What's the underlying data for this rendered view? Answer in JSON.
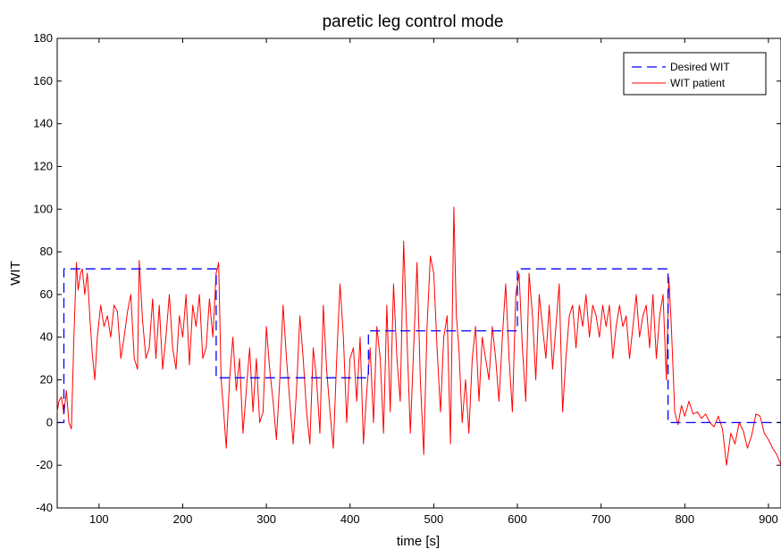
{
  "chart_data": {
    "type": "line",
    "title": "paretic leg control mode",
    "xlabel": "time [s]",
    "ylabel": "WIT",
    "xlim": [
      50,
      915
    ],
    "ylim": [
      -40,
      180
    ],
    "xticks": [
      100,
      200,
      300,
      400,
      500,
      600,
      700,
      800,
      900
    ],
    "yticks": [
      -40,
      -20,
      0,
      20,
      40,
      60,
      80,
      100,
      120,
      140,
      160,
      180
    ],
    "grid": false,
    "legend_position": "top-right",
    "series": [
      {
        "name": "Desired WIT",
        "color": "#0000ff",
        "style": "dashed",
        "x": [
          50,
          58,
          58,
          240,
          240,
          422,
          422,
          600,
          600,
          780,
          780,
          915
        ],
        "y": [
          0,
          0,
          72,
          72,
          21,
          21,
          43,
          43,
          72,
          72,
          0,
          0
        ]
      },
      {
        "name": "WIT patient",
        "color": "#ff0000",
        "style": "solid",
        "x": [
          50,
          52,
          55,
          58,
          61,
          64,
          67,
          70,
          73,
          75,
          78,
          80,
          83,
          86,
          89,
          92,
          95,
          98,
          102,
          106,
          110,
          114,
          118,
          122,
          126,
          130,
          134,
          138,
          142,
          146,
          148,
          152,
          156,
          160,
          164,
          168,
          172,
          176,
          180,
          184,
          188,
          192,
          196,
          200,
          204,
          208,
          212,
          216,
          220,
          224,
          228,
          232,
          236,
          240,
          243,
          246,
          249,
          252,
          256,
          260,
          264,
          268,
          272,
          276,
          280,
          284,
          288,
          292,
          296,
          300,
          304,
          308,
          312,
          316,
          320,
          324,
          328,
          332,
          336,
          340,
          344,
          348,
          352,
          356,
          360,
          364,
          368,
          372,
          376,
          380,
          384,
          388,
          392,
          396,
          400,
          404,
          408,
          412,
          416,
          420,
          424,
          428,
          432,
          436,
          440,
          444,
          448,
          452,
          456,
          460,
          464,
          468,
          472,
          476,
          480,
          484,
          488,
          492,
          496,
          500,
          504,
          508,
          512,
          516,
          520,
          524,
          527,
          530,
          534,
          538,
          542,
          546,
          550,
          554,
          558,
          562,
          566,
          570,
          574,
          578,
          582,
          586,
          590,
          594,
          598,
          602,
          606,
          610,
          614,
          618,
          622,
          626,
          630,
          634,
          638,
          642,
          646,
          650,
          654,
          658,
          662,
          666,
          670,
          674,
          678,
          682,
          686,
          690,
          694,
          698,
          702,
          706,
          710,
          714,
          718,
          722,
          726,
          730,
          734,
          738,
          742,
          746,
          750,
          754,
          758,
          762,
          766,
          770,
          774,
          778,
          781,
          784,
          788,
          792,
          796,
          800,
          805,
          810,
          815,
          820,
          825,
          830,
          835,
          840,
          845,
          850,
          855,
          860,
          865,
          870,
          875,
          880,
          885,
          890,
          895,
          900,
          905,
          910,
          915
        ],
        "y": [
          5,
          10,
          12,
          4,
          15,
          0,
          -3,
          40,
          75,
          62,
          70,
          72,
          60,
          70,
          50,
          32,
          20,
          40,
          55,
          45,
          50,
          40,
          55,
          52,
          30,
          40,
          52,
          60,
          30,
          25,
          76,
          48,
          30,
          35,
          58,
          30,
          55,
          25,
          40,
          60,
          35,
          25,
          50,
          40,
          60,
          27,
          55,
          45,
          60,
          30,
          35,
          58,
          40,
          70,
          75,
          20,
          5,
          -12,
          20,
          40,
          15,
          30,
          -5,
          15,
          35,
          5,
          30,
          0,
          5,
          45,
          25,
          10,
          -8,
          20,
          55,
          30,
          10,
          -10,
          15,
          50,
          30,
          5,
          -10,
          35,
          20,
          -5,
          55,
          25,
          5,
          -12,
          30,
          65,
          40,
          0,
          30,
          35,
          10,
          40,
          -10,
          15,
          35,
          0,
          45,
          30,
          -5,
          55,
          5,
          65,
          30,
          10,
          85,
          40,
          -5,
          35,
          75,
          20,
          -15,
          45,
          78,
          70,
          35,
          5,
          40,
          50,
          -10,
          101,
          50,
          35,
          0,
          20,
          -5,
          30,
          45,
          10,
          40,
          30,
          20,
          45,
          30,
          10,
          40,
          65,
          30,
          5,
          60,
          70,
          35,
          10,
          70,
          50,
          20,
          60,
          45,
          30,
          55,
          25,
          45,
          65,
          5,
          30,
          50,
          55,
          35,
          55,
          45,
          60,
          40,
          55,
          50,
          40,
          55,
          45,
          55,
          30,
          45,
          55,
          45,
          50,
          30,
          45,
          60,
          40,
          50,
          55,
          35,
          60,
          30,
          50,
          60,
          20,
          68,
          45,
          5,
          -1,
          8,
          3,
          10,
          4,
          5,
          2,
          4,
          0,
          -2,
          3,
          -3,
          -20,
          -5,
          -10,
          0,
          -4,
          -12,
          -6,
          4,
          3,
          -5,
          -8,
          -12,
          -15,
          -20
        ]
      }
    ]
  }
}
